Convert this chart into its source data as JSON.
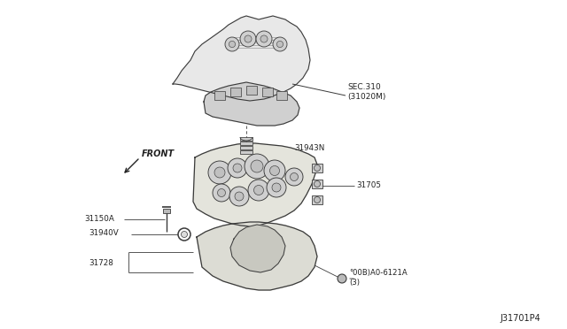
{
  "bg_color": "#ffffff",
  "diagram_id": "J31701P4",
  "labels": {
    "sec310": "SEC.310\n(31020M)",
    "part_31943N": "31943N",
    "part_31705": "31705",
    "part_31150A": "31150A",
    "part_31940V": "31940V",
    "part_31728": "31728",
    "part_bolt": "°00B)A0-6121A\n(3)",
    "front": "FRONT"
  },
  "lc": "#3a3a3a",
  "fc": "#e8e8e8",
  "fc2": "#d0d0d0",
  "fc3": "#c0c0c0"
}
